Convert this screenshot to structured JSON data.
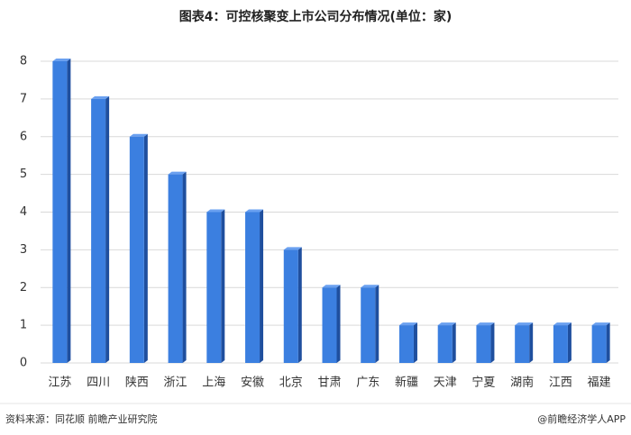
{
  "chart_data": {
    "type": "bar",
    "title": "图表4：可控核聚变上市公司分布情况(单位：家)",
    "categories": [
      "江苏",
      "四川",
      "陕西",
      "浙江",
      "上海",
      "安徽",
      "北京",
      "甘肃",
      "广东",
      "新疆",
      "天津",
      "宁夏",
      "湖南",
      "江西",
      "福建"
    ],
    "values": [
      8,
      7,
      6,
      5,
      4,
      4,
      3,
      2,
      2,
      1,
      1,
      1,
      1,
      1,
      1
    ],
    "color": "#3b7fe0",
    "ylim": [
      0,
      8
    ],
    "yticks": [
      0,
      1,
      2,
      3,
      4,
      5,
      6,
      7,
      8
    ],
    "grid": true,
    "source": "资料来源：同花顺 前瞻产业研究院",
    "credit": "@前瞻经济学人APP"
  }
}
